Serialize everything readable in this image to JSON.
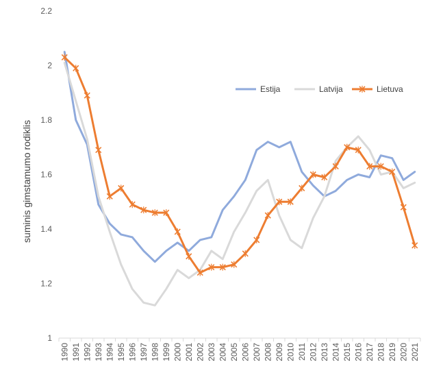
{
  "chart_data": {
    "type": "line",
    "ylabel": "suminis gimstamumo rodiklis",
    "xlabel": "",
    "ylim": [
      1,
      2.2
    ],
    "yticks": [
      1,
      1.2,
      1.4,
      1.6,
      1.8,
      2,
      2.2
    ],
    "ytick_labels": [
      "1",
      "1.2",
      "1.4",
      "1.6",
      "1.8",
      "2",
      "2.2"
    ],
    "grid": false,
    "legend_position": "top-right",
    "categories": [
      "1990",
      "1991",
      "1992",
      "1993",
      "1994",
      "1995",
      "1996",
      "1997",
      "1998",
      "1999",
      "2000",
      "2001",
      "2002",
      "2003",
      "2004",
      "2005",
      "2006",
      "2007",
      "2008",
      "2009",
      "2010",
      "2011",
      "2012",
      "2013",
      "2014",
      "2015",
      "2016",
      "2017",
      "2018",
      "2019",
      "2020",
      "2021"
    ],
    "series": [
      {
        "name": "Estija",
        "color": "#8faadc",
        "marker": "none",
        "values": [
          2.05,
          1.8,
          1.71,
          1.49,
          1.42,
          1.38,
          1.37,
          1.32,
          1.28,
          1.32,
          1.35,
          1.32,
          1.36,
          1.37,
          1.47,
          1.52,
          1.58,
          1.69,
          1.72,
          1.7,
          1.72,
          1.61,
          1.56,
          1.52,
          1.54,
          1.58,
          1.6,
          1.59,
          1.67,
          1.66,
          1.58,
          1.61
        ]
      },
      {
        "name": "Latvija",
        "color": "#d9d9d9",
        "marker": "none",
        "values": [
          2.01,
          1.87,
          1.73,
          1.52,
          1.39,
          1.27,
          1.18,
          1.13,
          1.12,
          1.18,
          1.25,
          1.22,
          1.25,
          1.32,
          1.29,
          1.39,
          1.46,
          1.54,
          1.58,
          1.45,
          1.36,
          1.33,
          1.44,
          1.52,
          1.65,
          1.7,
          1.74,
          1.69,
          1.6,
          1.61,
          1.55,
          1.57
        ]
      },
      {
        "name": "Lietuva",
        "color": "#ed7d31",
        "marker": "x",
        "values": [
          2.03,
          1.99,
          1.89,
          1.69,
          1.52,
          1.55,
          1.49,
          1.47,
          1.46,
          1.46,
          1.39,
          1.3,
          1.24,
          1.26,
          1.26,
          1.27,
          1.31,
          1.36,
          1.45,
          1.5,
          1.5,
          1.55,
          1.6,
          1.59,
          1.63,
          1.7,
          1.69,
          1.63,
          1.63,
          1.61,
          1.48,
          1.34
        ]
      }
    ]
  }
}
